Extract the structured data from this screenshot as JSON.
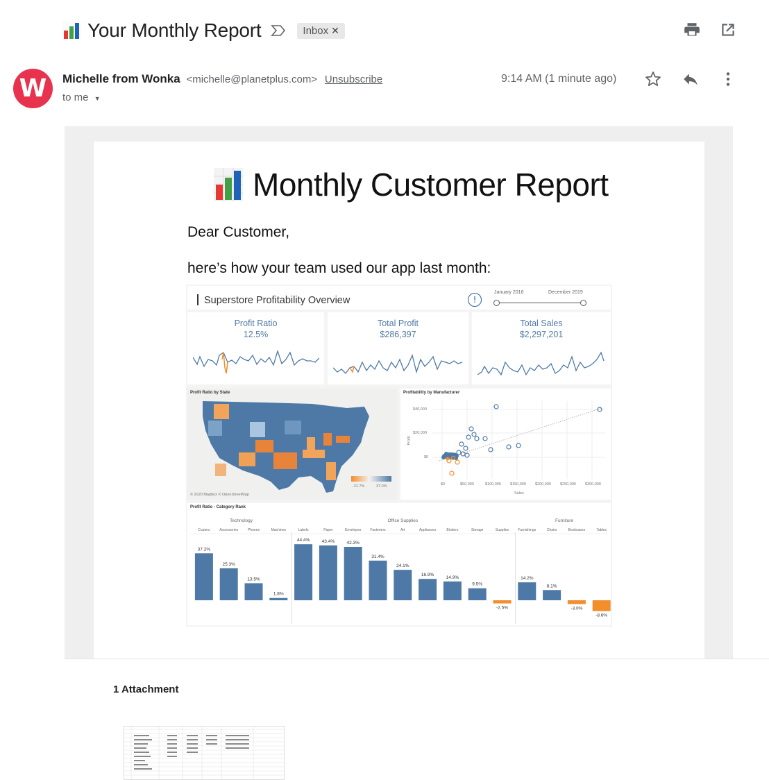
{
  "email": {
    "subject": "Your Monthly Report",
    "label_chip": "Inbox",
    "sender_name": "Michelle from Wonka",
    "sender_email": "<michelle@planetplus.com>",
    "unsubscribe": "Unsubscribe",
    "recipient": "to me",
    "timestamp": "9:14 AM (1 minute ago)",
    "avatar_letter": "W",
    "icons": [
      "print-icon",
      "open-in-new-window-icon",
      "star-icon",
      "reply-icon",
      "more-vert-icon",
      "importance-marker-icon"
    ]
  },
  "body": {
    "title": "Monthly Customer Report",
    "greeting": "Dear Customer,",
    "intro": "here’s how your team used our app last month:"
  },
  "dashboard": {
    "title": "Superstore Profitability Overview",
    "date_start": "January 2016",
    "date_end": "December 2019",
    "kpis": [
      {
        "label": "Profit Ratio",
        "value": "12.5%"
      },
      {
        "label": "Total Profit",
        "value": "$286,397"
      },
      {
        "label": "Total Sales",
        "value": "$2,297,201"
      }
    ],
    "map": {
      "title": "Profit Ratio by State",
      "legend_min": "-21.7%",
      "legend_max": "37.0%",
      "credit": "© 2020 Mapbox © OpenStreetMap"
    },
    "scatter": {
      "title": "Profitability by Manufacturer",
      "ylabel": "Profit",
      "xlabel": "Sales",
      "y_ticks": [
        "$40,000",
        "$20,000",
        "$0"
      ],
      "x_ticks": [
        "$0",
        "$50,000",
        "$100,000",
        "$150,000",
        "$200,000",
        "$250,000",
        "$300,000"
      ]
    },
    "bar_title": "Profit Ratio - Category Rank"
  },
  "chart_data": {
    "type": "bar",
    "title": "Profit Ratio - Category Rank",
    "groups": [
      {
        "name": "Technology",
        "categories": [
          "Copiers",
          "Accessories",
          "Phones",
          "Machines"
        ],
        "values": [
          37.2,
          25.3,
          13.5,
          1.8
        ]
      },
      {
        "name": "Office Supplies",
        "categories": [
          "Labels",
          "Paper",
          "Envelopes",
          "Fasteners",
          "Art",
          "Appliances",
          "Binders",
          "Storage",
          "Supplies"
        ],
        "values": [
          44.4,
          43.4,
          42.3,
          31.4,
          24.1,
          16.9,
          14.9,
          9.5,
          -2.5
        ]
      },
      {
        "name": "Furniture",
        "categories": [
          "Furnishings",
          "Chairs",
          "Bookcases",
          "Tables"
        ],
        "values": [
          14.2,
          8.1,
          -3.0,
          -8.6
        ]
      }
    ],
    "value_labels": {
      "Copiers": "37.2%",
      "Accessories": "25.3%",
      "Phones": "13.5%",
      "Machines": "1.8%",
      "Labels": "44.4%",
      "Paper": "43.4%",
      "Envelopes": "42.3%",
      "Fasteners": "31.4%",
      "Art": "24.1%",
      "Appliances": "16.9%",
      "Binders": "14.9%",
      "Storage": "9.5%",
      "Supplies": "-2.5%",
      "Furnishings": "14.2%",
      "Chairs": "8.1%",
      "Bookcases": "-3.0%",
      "Tables": "-8.6%"
    },
    "positive_color": "#4e79a7",
    "negative_color": "#f28e2b"
  },
  "attachments": {
    "title": "1 Attachment"
  },
  "colors": {
    "avatar": "#e8334f",
    "kpi_text": "#4e79a7",
    "spark_line": "#4e79a7",
    "spark_low": "#f28e2b"
  }
}
